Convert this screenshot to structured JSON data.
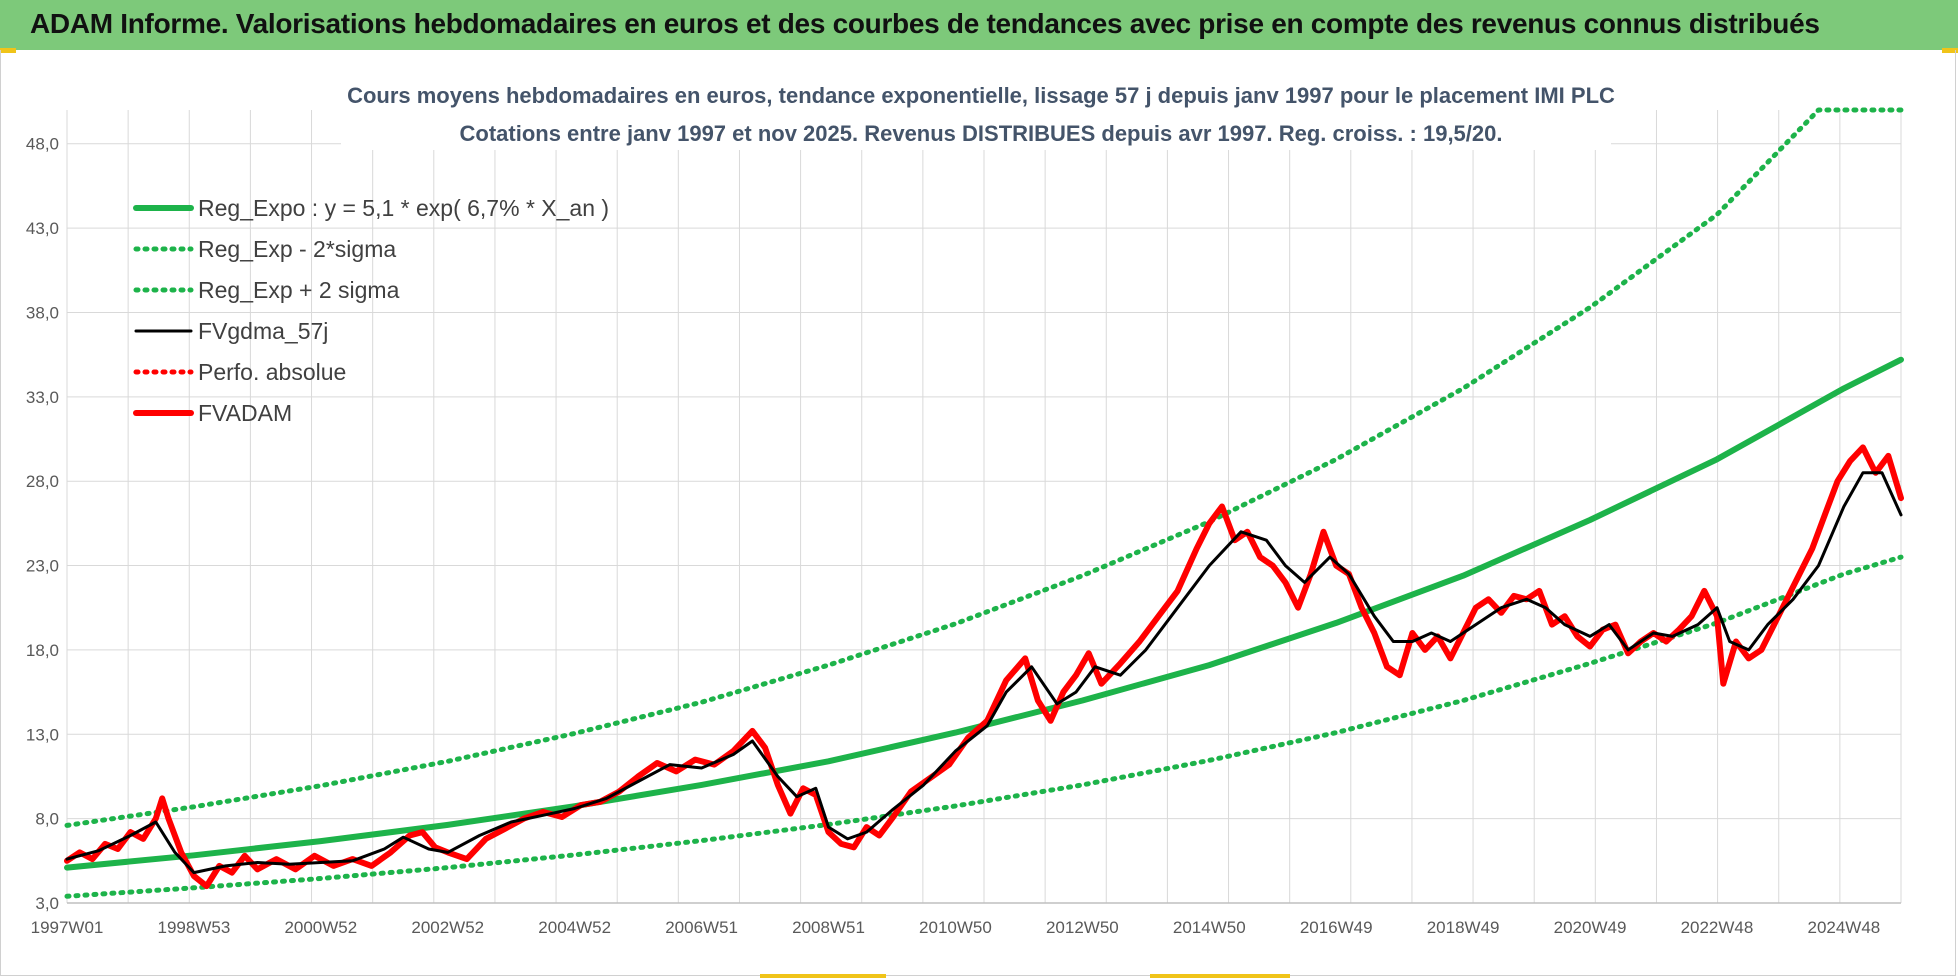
{
  "banner": {
    "title": "ADAM Informe. Valorisations hebdomadaires en euros et des courbes de tendances avec prise en compte des revenus connus distribués"
  },
  "colors": {
    "banner": "#7dc97a",
    "regression": "#1db34a",
    "fvgdma": "#000000",
    "fvadam": "#ff0000",
    "perfo": "#ff0000",
    "grid": "#d9d9d9"
  },
  "chart_data": {
    "type": "line",
    "title": "Cours moyens hebdomadaires en euros, tendance exponentielle, lissage 57 j depuis janv 1997 pour le placement IMI PLC",
    "subtitle": "Cotations entre janv 1997 et nov 2025. Revenus DISTRIBUES depuis avr 1997. Reg. croiss. : 19,5/20.",
    "ylim": [
      3.0,
      50.0
    ],
    "xlim": [
      1997.0,
      2025.9
    ],
    "y_ticks": [
      "3,0",
      "8,0",
      "13,0",
      "18,0",
      "23,0",
      "28,0",
      "33,0",
      "38,0",
      "43,0",
      "48,0"
    ],
    "x_ticks": [
      {
        "label": "1997W01",
        "x": 1997.0
      },
      {
        "label": "1998W53",
        "x": 1999.0
      },
      {
        "label": "2000W52",
        "x": 2001.0
      },
      {
        "label": "2002W52",
        "x": 2003.0
      },
      {
        "label": "2004W52",
        "x": 2005.0
      },
      {
        "label": "2006W51",
        "x": 2007.0
      },
      {
        "label": "2008W51",
        "x": 2009.0
      },
      {
        "label": "2010W50",
        "x": 2011.0
      },
      {
        "label": "2012W50",
        "x": 2013.0
      },
      {
        "label": "2014W50",
        "x": 2015.0
      },
      {
        "label": "2016W49",
        "x": 2017.0
      },
      {
        "label": "2018W49",
        "x": 2019.0
      },
      {
        "label": "2020W49",
        "x": 2021.0
      },
      {
        "label": "2022W48",
        "x": 2023.0
      },
      {
        "label": "2024W48",
        "x": 2025.0
      }
    ],
    "grid": true,
    "legend_position": "top-left",
    "series": [
      {
        "name": "Reg_Expo : y = 5,1 * exp( 6,7% *  X_an )",
        "style": "solid-thick",
        "color": "#1db34a",
        "points": [
          [
            1997.0,
            5.1
          ],
          [
            1999.0,
            5.83
          ],
          [
            2001.0,
            6.67
          ],
          [
            2003.0,
            7.63
          ],
          [
            2005.0,
            8.74
          ],
          [
            2007.0,
            10.0
          ],
          [
            2009.0,
            11.4
          ],
          [
            2011.0,
            13.1
          ],
          [
            2013.0,
            15.0
          ],
          [
            2015.0,
            17.1
          ],
          [
            2017.0,
            19.6
          ],
          [
            2019.0,
            22.4
          ],
          [
            2021.0,
            25.7
          ],
          [
            2023.0,
            29.3
          ],
          [
            2025.0,
            33.5
          ],
          [
            2025.9,
            35.2
          ]
        ]
      },
      {
        "name": "Reg_Exp - 2*sigma",
        "style": "dotted",
        "color": "#1db34a",
        "points": [
          [
            1997.0,
            3.4
          ],
          [
            1999.0,
            3.9
          ],
          [
            2001.0,
            4.45
          ],
          [
            2003.0,
            5.1
          ],
          [
            2005.0,
            5.85
          ],
          [
            2007.0,
            6.7
          ],
          [
            2009.0,
            7.65
          ],
          [
            2011.0,
            8.75
          ],
          [
            2013.0,
            10.0
          ],
          [
            2015.0,
            11.45
          ],
          [
            2017.0,
            13.1
          ],
          [
            2019.0,
            15.0
          ],
          [
            2021.0,
            17.2
          ],
          [
            2023.0,
            19.6
          ],
          [
            2025.0,
            22.5
          ],
          [
            2025.9,
            23.5
          ]
        ]
      },
      {
        "name": "Reg_Exp + 2 sigma",
        "style": "dotted",
        "color": "#1db34a",
        "points": [
          [
            1997.0,
            7.6
          ],
          [
            1999.0,
            8.7
          ],
          [
            2001.0,
            9.95
          ],
          [
            2003.0,
            11.4
          ],
          [
            2005.0,
            13.05
          ],
          [
            2007.0,
            14.9
          ],
          [
            2009.0,
            17.1
          ],
          [
            2011.0,
            19.55
          ],
          [
            2013.0,
            22.4
          ],
          [
            2015.0,
            25.6
          ],
          [
            2017.0,
            29.3
          ],
          [
            2019.0,
            33.5
          ],
          [
            2021.0,
            38.3
          ],
          [
            2023.0,
            43.8
          ],
          [
            2024.6,
            50.0
          ],
          [
            2025.9,
            50.0
          ]
        ]
      },
      {
        "name": "FVgdma_57j",
        "style": "solid-thin",
        "color": "#000000",
        "points": [
          [
            1997.0,
            5.6
          ],
          [
            1997.5,
            6.1
          ],
          [
            1998.0,
            7.0
          ],
          [
            1998.4,
            7.8
          ],
          [
            1998.7,
            6.0
          ],
          [
            1999.0,
            4.8
          ],
          [
            1999.5,
            5.2
          ],
          [
            2000.0,
            5.4
          ],
          [
            2000.5,
            5.3
          ],
          [
            2001.0,
            5.4
          ],
          [
            2001.5,
            5.5
          ],
          [
            2002.0,
            6.2
          ],
          [
            2002.3,
            6.9
          ],
          [
            2002.7,
            6.2
          ],
          [
            2003.0,
            6.0
          ],
          [
            2003.5,
            7.0
          ],
          [
            2004.0,
            7.8
          ],
          [
            2004.5,
            8.2
          ],
          [
            2005.0,
            8.6
          ],
          [
            2005.5,
            9.2
          ],
          [
            2006.0,
            10.2
          ],
          [
            2006.5,
            11.2
          ],
          [
            2007.0,
            11.0
          ],
          [
            2007.5,
            11.8
          ],
          [
            2007.8,
            12.6
          ],
          [
            2008.2,
            10.5
          ],
          [
            2008.5,
            9.3
          ],
          [
            2008.8,
            9.8
          ],
          [
            2009.0,
            7.5
          ],
          [
            2009.3,
            6.8
          ],
          [
            2009.6,
            7.2
          ],
          [
            2010.0,
            8.5
          ],
          [
            2010.5,
            10.0
          ],
          [
            2011.0,
            12.0
          ],
          [
            2011.5,
            13.5
          ],
          [
            2011.8,
            15.5
          ],
          [
            2012.2,
            17.0
          ],
          [
            2012.6,
            14.8
          ],
          [
            2012.9,
            15.5
          ],
          [
            2013.2,
            17.0
          ],
          [
            2013.6,
            16.5
          ],
          [
            2014.0,
            18.0
          ],
          [
            2014.5,
            20.5
          ],
          [
            2015.0,
            23.0
          ],
          [
            2015.5,
            25.0
          ],
          [
            2015.9,
            24.5
          ],
          [
            2016.2,
            23.0
          ],
          [
            2016.5,
            22.0
          ],
          [
            2016.9,
            23.5
          ],
          [
            2017.2,
            22.5
          ],
          [
            2017.6,
            20.0
          ],
          [
            2017.9,
            18.5
          ],
          [
            2018.2,
            18.5
          ],
          [
            2018.5,
            19.0
          ],
          [
            2018.8,
            18.5
          ],
          [
            2019.2,
            19.5
          ],
          [
            2019.6,
            20.5
          ],
          [
            2020.0,
            21.0
          ],
          [
            2020.3,
            20.5
          ],
          [
            2020.6,
            19.5
          ],
          [
            2021.0,
            18.8
          ],
          [
            2021.3,
            19.5
          ],
          [
            2021.6,
            18.0
          ],
          [
            2022.0,
            19.0
          ],
          [
            2022.3,
            18.8
          ],
          [
            2022.7,
            19.5
          ],
          [
            2023.0,
            20.5
          ],
          [
            2023.2,
            18.5
          ],
          [
            2023.5,
            18.0
          ],
          [
            2023.8,
            19.5
          ],
          [
            2024.2,
            21.0
          ],
          [
            2024.6,
            23.0
          ],
          [
            2025.0,
            26.5
          ],
          [
            2025.3,
            28.5
          ],
          [
            2025.6,
            28.5
          ],
          [
            2025.9,
            26.0
          ]
        ]
      },
      {
        "name": "Perfo. absolue",
        "style": "dotted",
        "color": "#ff0000",
        "points": []
      },
      {
        "name": "FVADAM",
        "style": "solid-thick",
        "color": "#ff0000",
        "points": [
          [
            1997.0,
            5.5
          ],
          [
            1997.2,
            6.0
          ],
          [
            1997.4,
            5.6
          ],
          [
            1997.6,
            6.5
          ],
          [
            1997.8,
            6.2
          ],
          [
            1998.0,
            7.2
          ],
          [
            1998.2,
            6.8
          ],
          [
            1998.4,
            8.0
          ],
          [
            1998.5,
            9.2
          ],
          [
            1998.6,
            8.0
          ],
          [
            1998.8,
            6.0
          ],
          [
            1999.0,
            4.6
          ],
          [
            1999.2,
            4.0
          ],
          [
            1999.4,
            5.2
          ],
          [
            1999.6,
            4.8
          ],
          [
            1999.8,
            5.8
          ],
          [
            2000.0,
            5.0
          ],
          [
            2000.3,
            5.6
          ],
          [
            2000.6,
            5.0
          ],
          [
            2000.9,
            5.8
          ],
          [
            2001.2,
            5.2
          ],
          [
            2001.5,
            5.6
          ],
          [
            2001.8,
            5.2
          ],
          [
            2002.1,
            6.0
          ],
          [
            2002.4,
            7.0
          ],
          [
            2002.6,
            7.2
          ],
          [
            2002.8,
            6.3
          ],
          [
            2003.0,
            6.0
          ],
          [
            2003.3,
            5.6
          ],
          [
            2003.6,
            6.8
          ],
          [
            2003.9,
            7.4
          ],
          [
            2004.2,
            8.0
          ],
          [
            2004.5,
            8.4
          ],
          [
            2004.8,
            8.1
          ],
          [
            2005.1,
            8.8
          ],
          [
            2005.4,
            9.0
          ],
          [
            2005.7,
            9.6
          ],
          [
            2006.0,
            10.5
          ],
          [
            2006.3,
            11.3
          ],
          [
            2006.6,
            10.8
          ],
          [
            2006.9,
            11.5
          ],
          [
            2007.2,
            11.2
          ],
          [
            2007.5,
            12.0
          ],
          [
            2007.8,
            13.2
          ],
          [
            2008.0,
            12.2
          ],
          [
            2008.2,
            10.0
          ],
          [
            2008.4,
            8.3
          ],
          [
            2008.6,
            9.8
          ],
          [
            2008.8,
            9.4
          ],
          [
            2009.0,
            7.2
          ],
          [
            2009.2,
            6.5
          ],
          [
            2009.4,
            6.3
          ],
          [
            2009.6,
            7.5
          ],
          [
            2009.8,
            7.0
          ],
          [
            2010.0,
            8.0
          ],
          [
            2010.3,
            9.6
          ],
          [
            2010.6,
            10.4
          ],
          [
            2010.9,
            11.2
          ],
          [
            2011.2,
            12.8
          ],
          [
            2011.5,
            13.8
          ],
          [
            2011.8,
            16.2
          ],
          [
            2012.1,
            17.5
          ],
          [
            2012.3,
            15.0
          ],
          [
            2012.5,
            13.8
          ],
          [
            2012.7,
            15.5
          ],
          [
            2012.9,
            16.5
          ],
          [
            2013.1,
            17.8
          ],
          [
            2013.3,
            16.0
          ],
          [
            2013.6,
            17.2
          ],
          [
            2013.9,
            18.5
          ],
          [
            2014.2,
            20.0
          ],
          [
            2014.5,
            21.5
          ],
          [
            2014.8,
            24.0
          ],
          [
            2015.0,
            25.5
          ],
          [
            2015.2,
            26.5
          ],
          [
            2015.4,
            24.5
          ],
          [
            2015.6,
            25.0
          ],
          [
            2015.8,
            23.5
          ],
          [
            2016.0,
            23.0
          ],
          [
            2016.2,
            22.0
          ],
          [
            2016.4,
            20.5
          ],
          [
            2016.6,
            22.5
          ],
          [
            2016.8,
            25.0
          ],
          [
            2017.0,
            23.0
          ],
          [
            2017.2,
            22.5
          ],
          [
            2017.4,
            20.5
          ],
          [
            2017.6,
            19.0
          ],
          [
            2017.8,
            17.0
          ],
          [
            2018.0,
            16.5
          ],
          [
            2018.2,
            19.0
          ],
          [
            2018.4,
            18.0
          ],
          [
            2018.6,
            18.8
          ],
          [
            2018.8,
            17.5
          ],
          [
            2019.0,
            19.0
          ],
          [
            2019.2,
            20.5
          ],
          [
            2019.4,
            21.0
          ],
          [
            2019.6,
            20.2
          ],
          [
            2019.8,
            21.2
          ],
          [
            2020.0,
            21.0
          ],
          [
            2020.2,
            21.5
          ],
          [
            2020.4,
            19.5
          ],
          [
            2020.6,
            20.0
          ],
          [
            2020.8,
            18.8
          ],
          [
            2021.0,
            18.2
          ],
          [
            2021.2,
            19.2
          ],
          [
            2021.4,
            19.5
          ],
          [
            2021.6,
            17.8
          ],
          [
            2021.8,
            18.5
          ],
          [
            2022.0,
            19.0
          ],
          [
            2022.2,
            18.5
          ],
          [
            2022.4,
            19.2
          ],
          [
            2022.6,
            20.0
          ],
          [
            2022.8,
            21.5
          ],
          [
            2023.0,
            20.0
          ],
          [
            2023.1,
            16.0
          ],
          [
            2023.3,
            18.5
          ],
          [
            2023.5,
            17.5
          ],
          [
            2023.7,
            18.0
          ],
          [
            2023.9,
            19.5
          ],
          [
            2024.1,
            21.0
          ],
          [
            2024.3,
            22.5
          ],
          [
            2024.5,
            24.0
          ],
          [
            2024.7,
            26.0
          ],
          [
            2024.9,
            28.0
          ],
          [
            2025.1,
            29.2
          ],
          [
            2025.3,
            30.0
          ],
          [
            2025.5,
            28.5
          ],
          [
            2025.7,
            29.5
          ],
          [
            2025.9,
            27.0
          ]
        ]
      }
    ]
  }
}
